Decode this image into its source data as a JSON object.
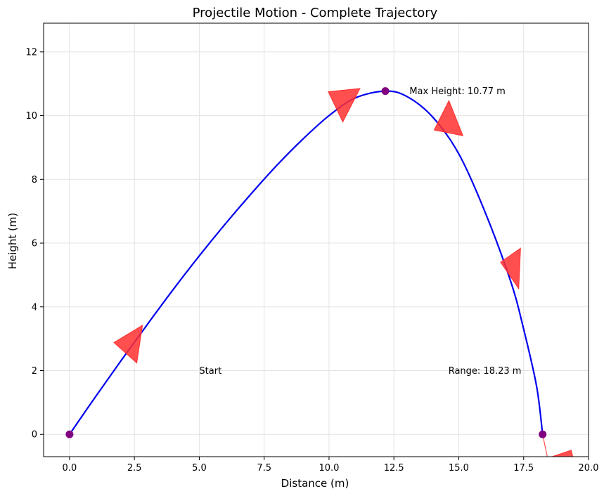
{
  "chart_data": {
    "type": "line",
    "title": "Projectile Motion - Complete Trajectory",
    "xlabel": "Distance (m)",
    "ylabel": "Height (m)",
    "xlim": [
      -1.0,
      20.0
    ],
    "ylim": [
      -0.7,
      12.9
    ],
    "xticks": [
      0.0,
      2.5,
      5.0,
      7.5,
      10.0,
      12.5,
      15.0,
      17.5,
      20.0
    ],
    "xtick_labels": [
      "0.0",
      "2.5",
      "5.0",
      "7.5",
      "10.0",
      "12.5",
      "15.0",
      "17.5",
      "20.0"
    ],
    "yticks": [
      0,
      2,
      4,
      6,
      8,
      10,
      12
    ],
    "ytick_labels": [
      "0",
      "2",
      "4",
      "6",
      "8",
      "10",
      "12"
    ],
    "grid": true,
    "legend": "none",
    "series": [
      {
        "color": "#0000ee",
        "points": [
          [
            0.0,
            0.0
          ],
          [
            1.0,
            1.18
          ],
          [
            2.0,
            2.33
          ],
          [
            3.0,
            3.45
          ],
          [
            4.0,
            4.55
          ],
          [
            5.0,
            5.6
          ],
          [
            6.0,
            6.6
          ],
          [
            7.0,
            7.55
          ],
          [
            8.0,
            8.45
          ],
          [
            9.0,
            9.27
          ],
          [
            10.0,
            10.0
          ],
          [
            11.0,
            10.55
          ],
          [
            12.17,
            10.77
          ],
          [
            13.0,
            10.6
          ],
          [
            14.0,
            9.95
          ],
          [
            15.0,
            8.8
          ],
          [
            16.0,
            7.0
          ],
          [
            17.0,
            4.8
          ],
          [
            17.5,
            3.3
          ],
          [
            18.0,
            1.5
          ],
          [
            18.23,
            0.0
          ]
        ]
      }
    ],
    "markers": [
      {
        "x": 0.0,
        "y": 0.0,
        "color": "#800080"
      },
      {
        "x": 12.17,
        "y": 10.77,
        "color": "#800080"
      },
      {
        "x": 18.23,
        "y": 0.0,
        "color": "#800080"
      }
    ],
    "arrows": [
      {
        "color": "#ff3030",
        "points": [
          [
            2.81,
            3.42
          ],
          [
            1.71,
            2.88
          ],
          [
            2.59,
            2.24
          ]
        ]
      },
      {
        "color": "#ff3030",
        "points": [
          [
            9.97,
            10.75
          ],
          [
            11.19,
            10.85
          ],
          [
            10.53,
            9.8
          ]
        ]
      },
      {
        "color": "#ff3030",
        "points": [
          [
            14.62,
            10.47
          ],
          [
            15.16,
            9.37
          ],
          [
            14.05,
            9.55
          ]
        ]
      },
      {
        "color": "#ff3030",
        "points": [
          [
            17.38,
            5.84
          ],
          [
            16.61,
            5.4
          ],
          [
            17.31,
            4.57
          ]
        ]
      },
      {
        "color": "#ff3030",
        "points": [
          [
            18.41,
            -0.75
          ],
          [
            19.41,
            -0.75
          ],
          [
            19.33,
            -0.5
          ]
        ]
      }
    ],
    "arrow_shaft": {
      "color": "#ff3030",
      "from": [
        18.23,
        0.0
      ],
      "to": [
        18.41,
        -0.7
      ]
    },
    "annotations": [
      {
        "text": "Max Height: 10.77 m",
        "x": 13.1,
        "y": 10.77
      },
      {
        "text": "Start",
        "x": 5.0,
        "y": 2.0
      },
      {
        "text": "Range: 18.23 m",
        "x": 14.6,
        "y": 2.0
      }
    ]
  }
}
